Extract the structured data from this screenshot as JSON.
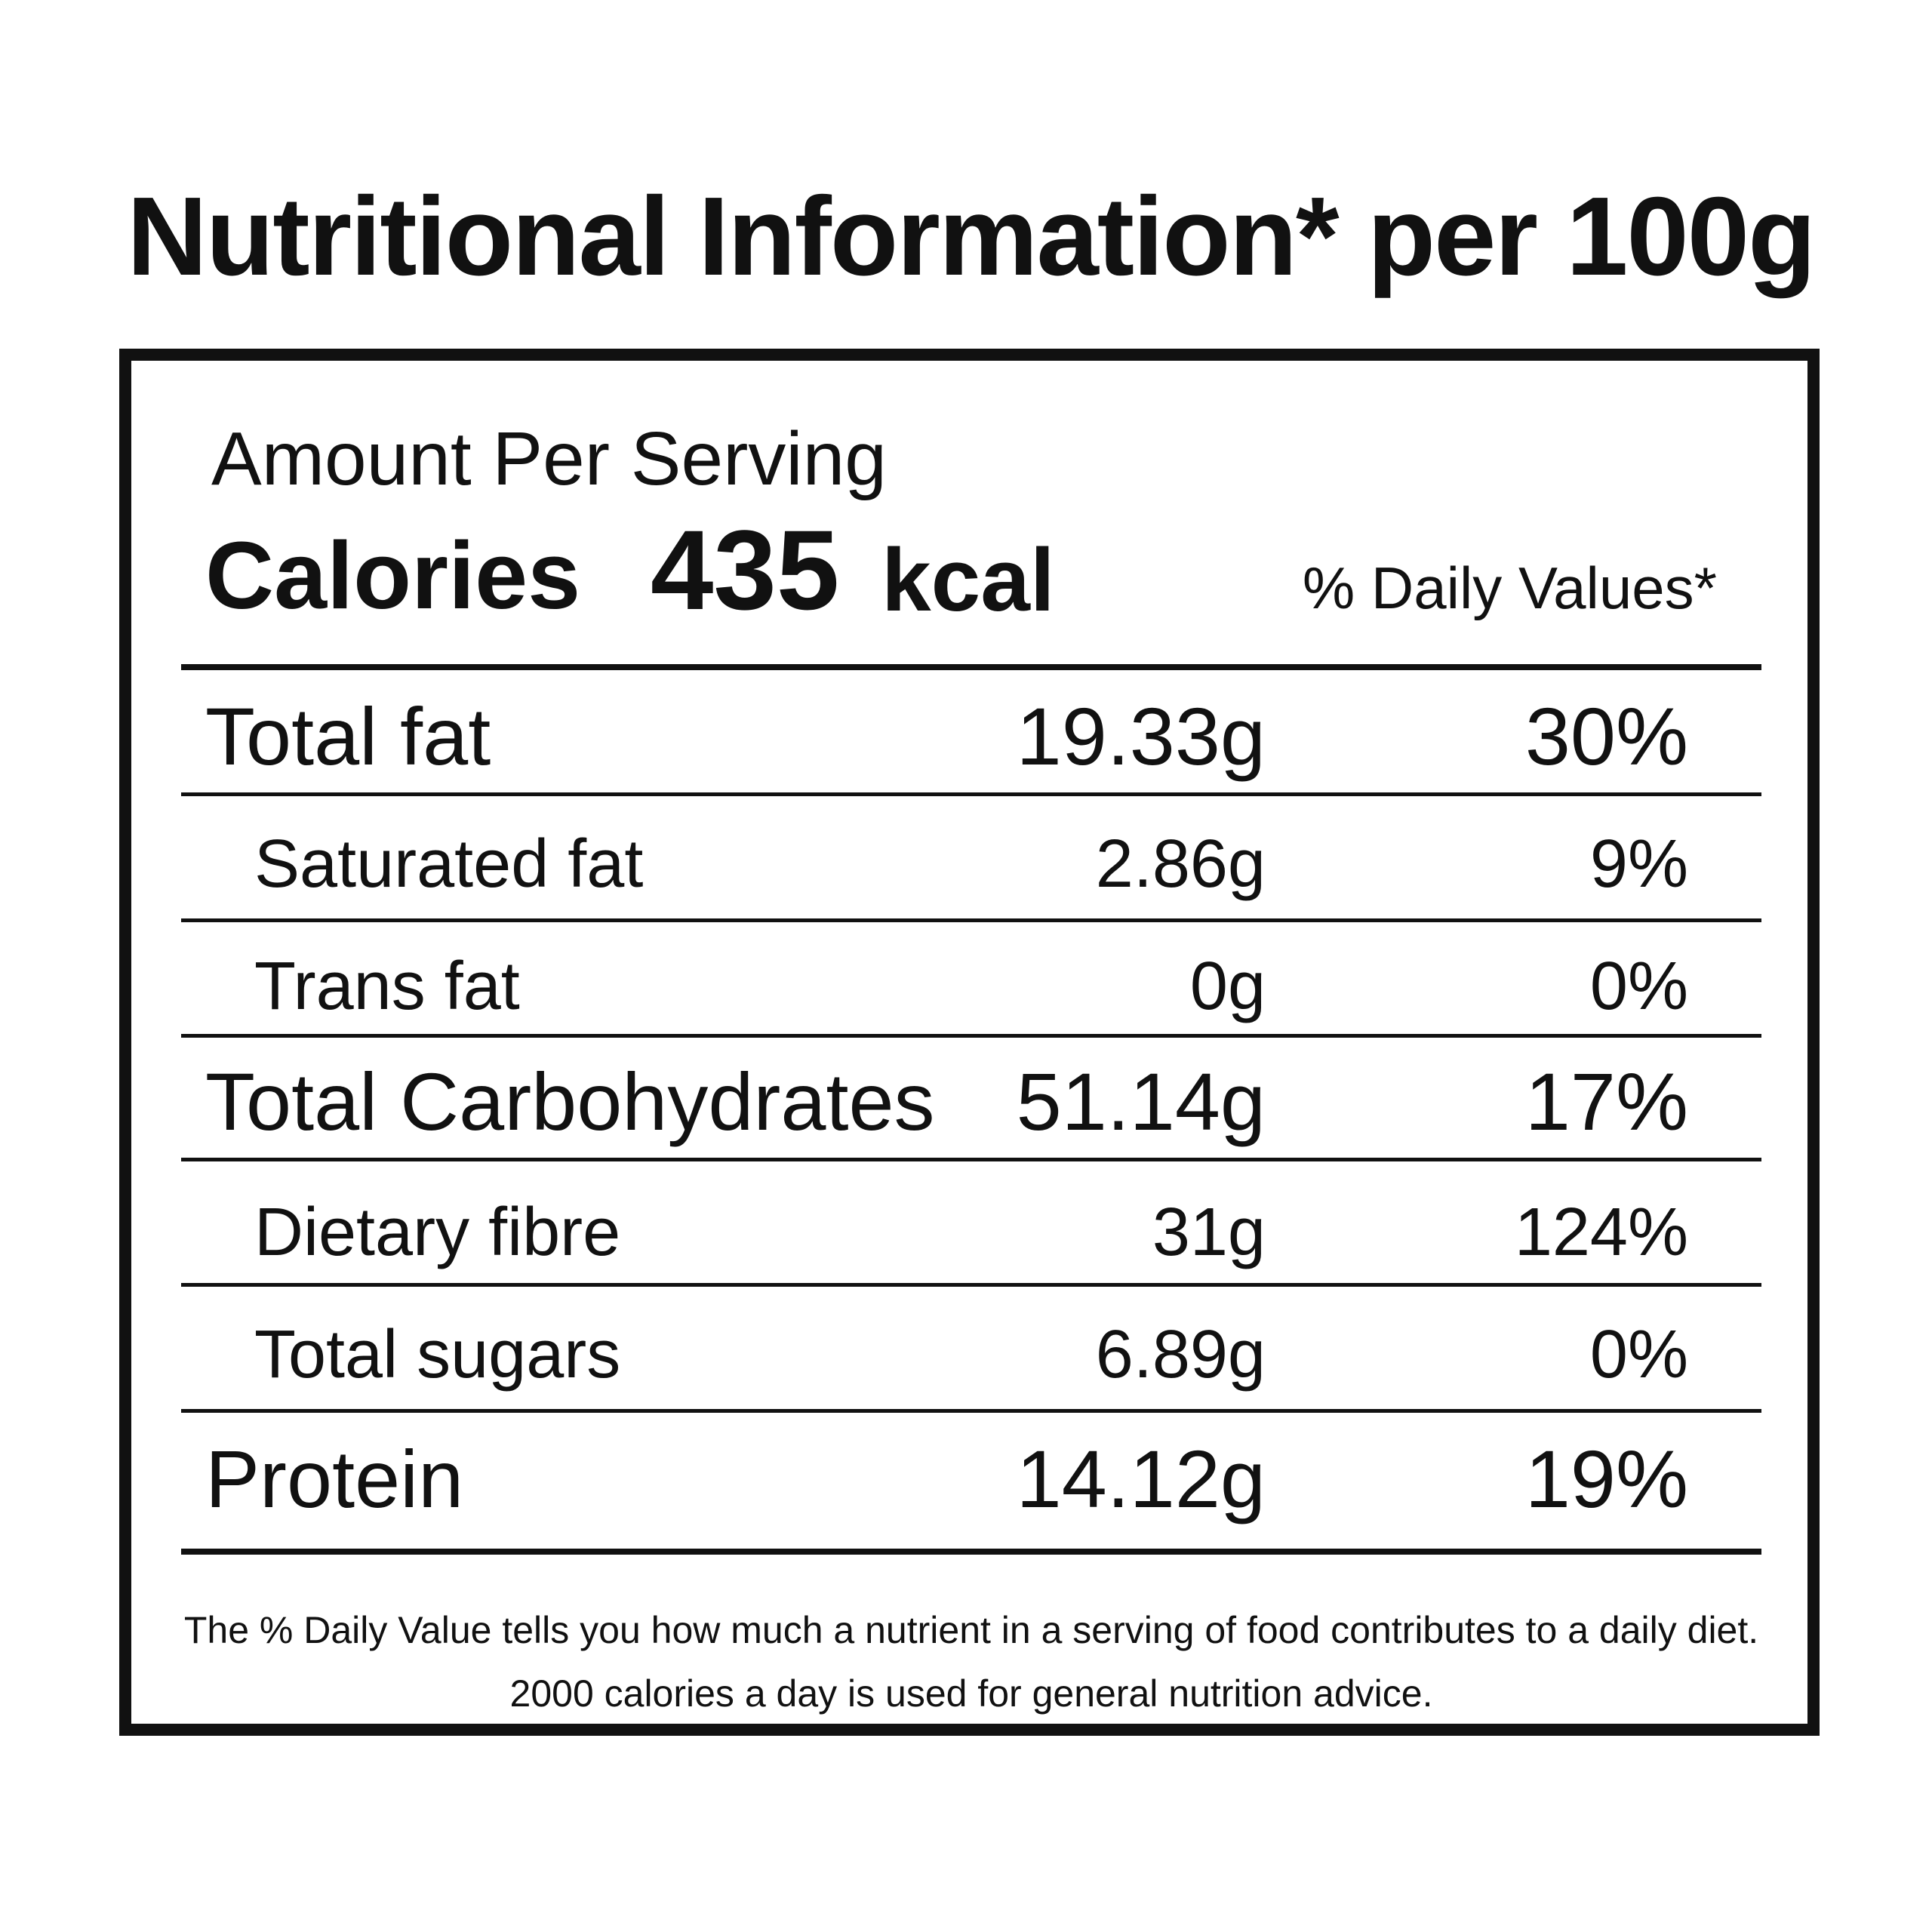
{
  "title": "Nutritional Information* per 100g",
  "panel": {
    "amount_label": "Amount Per Serving",
    "calories_label": "Calories",
    "calories_value": "435",
    "calories_unit": "kcal",
    "dv_header": "% Daily Values*",
    "rows": [
      {
        "label": "Total fat",
        "amount": "19.33g",
        "pct": "30%"
      },
      {
        "label": "Saturated fat",
        "amount": "2.86g",
        "pct": "9%"
      },
      {
        "label": "Trans fat",
        "amount": "0g",
        "pct": "0%"
      },
      {
        "label": "Total Carbohydrates",
        "amount": "51.14g",
        "pct": "17%"
      },
      {
        "label": "Dietary fibre",
        "amount": "31g",
        "pct": "124%"
      },
      {
        "label": "Total sugars",
        "amount": "6.89g",
        "pct": "0%"
      },
      {
        "label": "Protein",
        "amount": "14.12g",
        "pct": "19%"
      }
    ],
    "footnote": "The % Daily Value tells you how much a nutrient in a serving of food contributes to a daily diet. 2000 calories a day is used for general nutrition advice."
  }
}
